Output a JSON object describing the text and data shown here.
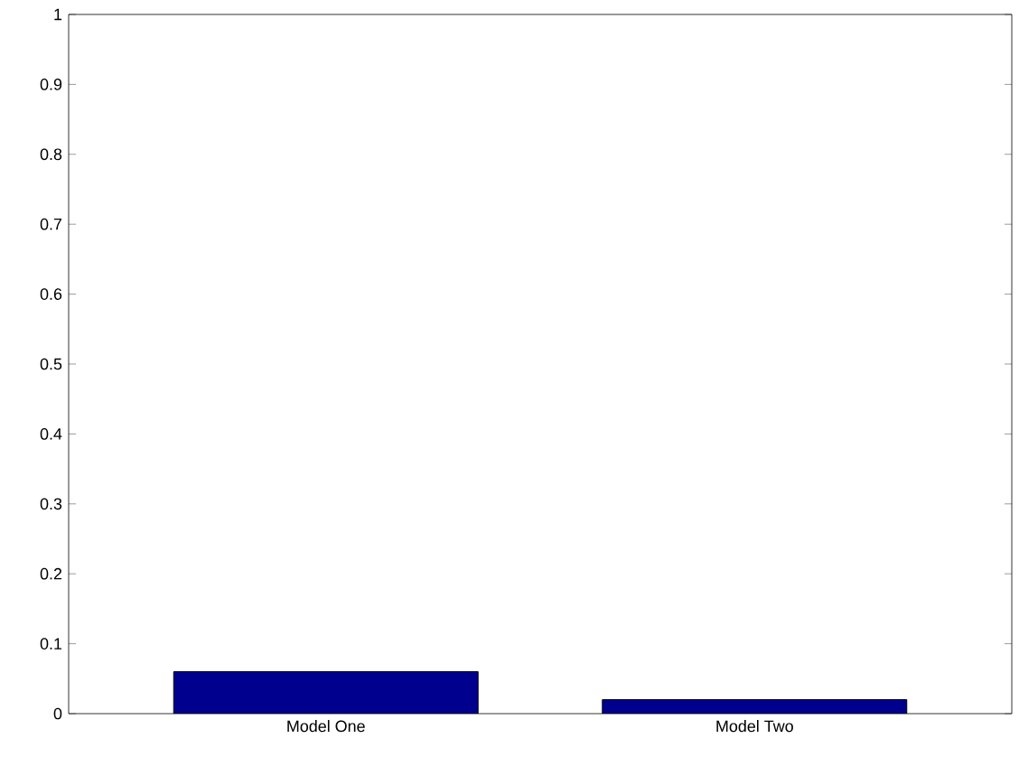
{
  "chart_data": {
    "type": "bar",
    "categories": [
      "Model One",
      "Model Two"
    ],
    "values": [
      0.06,
      0.02
    ],
    "color": "#00008f",
    "ylim": [
      0,
      1
    ],
    "yticks": [
      0,
      0.1,
      0.2,
      0.3,
      0.4,
      0.5,
      0.6,
      0.7,
      0.8,
      0.9,
      1
    ]
  }
}
